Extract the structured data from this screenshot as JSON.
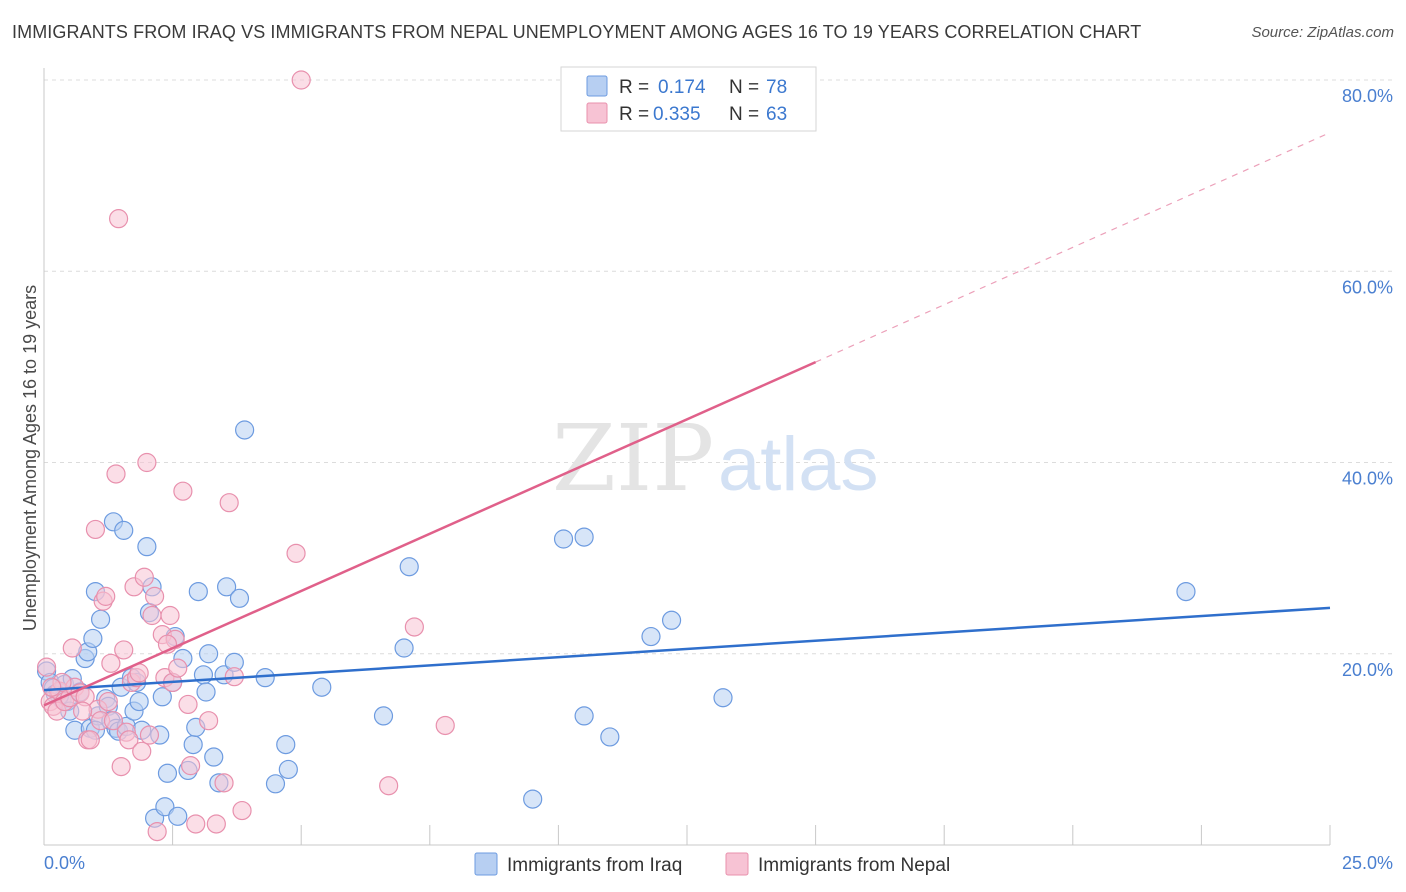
{
  "title": "IMMIGRANTS FROM IRAQ VS IMMIGRANTS FROM NEPAL UNEMPLOYMENT AMONG AGES 16 TO 19 YEARS CORRELATION CHART",
  "source": "Source: ZipAtlas.com",
  "watermark": {
    "zip": "ZIP",
    "atlas": "atlas"
  },
  "colors": {
    "iraq_fill": "#b7cff2",
    "iraq_stroke": "#6d9be0",
    "iraq_line": "#2f6fcc",
    "nepal_fill": "#f7c3d4",
    "nepal_stroke": "#e890ad",
    "nepal_line": "#e0608a",
    "grid": "#dcdcdc",
    "tick_label": "#4a7fd0"
  },
  "legend": {
    "iraq": {
      "r_label": "R =",
      "r_value": "0.174",
      "n_label": "N =",
      "n_value": "78"
    },
    "nepal": {
      "r_label": "R =",
      "r_value": "0.335",
      "n_label": "N =",
      "n_value": "63"
    }
  },
  "bottom_legend": {
    "iraq": "Immigrants from Iraq",
    "nepal": "Immigrants from Nepal"
  },
  "chart_data": {
    "type": "scatter",
    "title": "IMMIGRANTS FROM IRAQ VS IMMIGRANTS FROM NEPAL UNEMPLOYMENT AMONG AGES 16 TO 19 YEARS CORRELATION CHART",
    "xlabel": "",
    "ylabel": "Unemployment Among Ages 16 to 19 years",
    "xlim": [
      0,
      25
    ],
    "ylim": [
      0,
      80
    ],
    "x_tick_labels": [
      "0.0%",
      "25.0%"
    ],
    "y_tick_labels": [
      "20.0%",
      "40.0%",
      "60.0%",
      "80.0%"
    ],
    "y_ticks": [
      20,
      40,
      60,
      80
    ],
    "grid": true,
    "legend_position": "top-center",
    "series": [
      {
        "name": "Immigrants from Iraq",
        "r": 0.174,
        "n": 78,
        "trend": {
          "x": [
            0,
            25
          ],
          "y": [
            16.2,
            24.8
          ],
          "dashed_extension": false
        },
        "points": [
          [
            0.05,
            18.2
          ],
          [
            0.12,
            17.0
          ],
          [
            0.18,
            16.4
          ],
          [
            0.22,
            15.8
          ],
          [
            0.28,
            16.0
          ],
          [
            0.35,
            15.2
          ],
          [
            0.4,
            16.8
          ],
          [
            0.45,
            15.0
          ],
          [
            0.5,
            14.0
          ],
          [
            0.55,
            17.4
          ],
          [
            0.6,
            12.0
          ],
          [
            0.7,
            16.0
          ],
          [
            0.8,
            19.5
          ],
          [
            0.85,
            20.2
          ],
          [
            0.9,
            12.2
          ],
          [
            0.95,
            21.6
          ],
          [
            1.0,
            26.5
          ],
          [
            1.05,
            13.5
          ],
          [
            1.1,
            23.6
          ],
          [
            1.2,
            15.3
          ],
          [
            1.25,
            14.5
          ],
          [
            1.3,
            13.0
          ],
          [
            1.35,
            33.8
          ],
          [
            1.4,
            12.2
          ],
          [
            1.45,
            11.9
          ],
          [
            1.5,
            16.5
          ],
          [
            1.55,
            32.9
          ],
          [
            1.6,
            12.4
          ],
          [
            1.7,
            17.5
          ],
          [
            1.75,
            14.0
          ],
          [
            1.8,
            17.0
          ],
          [
            1.85,
            15.0
          ],
          [
            1.9,
            12.0
          ],
          [
            2.0,
            31.2
          ],
          [
            2.05,
            24.3
          ],
          [
            2.1,
            27.0
          ],
          [
            2.15,
            2.8
          ],
          [
            2.25,
            11.5
          ],
          [
            2.3,
            15.5
          ],
          [
            2.35,
            4.0
          ],
          [
            2.4,
            7.5
          ],
          [
            2.5,
            17.0
          ],
          [
            2.55,
            21.8
          ],
          [
            2.6,
            3.0
          ],
          [
            2.7,
            19.5
          ],
          [
            2.8,
            7.8
          ],
          [
            2.9,
            10.5
          ],
          [
            2.95,
            12.3
          ],
          [
            3.0,
            26.5
          ],
          [
            3.1,
            17.8
          ],
          [
            3.15,
            16.0
          ],
          [
            3.2,
            20.0
          ],
          [
            3.3,
            9.2
          ],
          [
            3.4,
            6.5
          ],
          [
            3.5,
            17.8
          ],
          [
            3.55,
            27.0
          ],
          [
            3.7,
            19.1
          ],
          [
            3.8,
            25.8
          ],
          [
            3.9,
            43.4
          ],
          [
            4.3,
            17.5
          ],
          [
            4.5,
            6.4
          ],
          [
            4.7,
            10.5
          ],
          [
            4.75,
            7.9
          ],
          [
            5.4,
            16.5
          ],
          [
            6.6,
            13.5
          ],
          [
            7.0,
            20.6
          ],
          [
            7.1,
            29.1
          ],
          [
            9.5,
            4.8
          ],
          [
            10.1,
            32.0
          ],
          [
            10.5,
            13.5
          ],
          [
            10.5,
            32.2
          ],
          [
            11.0,
            11.3
          ],
          [
            11.8,
            21.8
          ],
          [
            12.2,
            23.5
          ],
          [
            13.2,
            15.4
          ],
          [
            22.2,
            26.5
          ],
          [
            1.0,
            12.0
          ],
          [
            0.3,
            15.6
          ]
        ]
      },
      {
        "name": "Immigrants from Nepal",
        "r": 0.335,
        "n": 63,
        "trend": {
          "x": [
            0,
            15
          ],
          "y": [
            14.6,
            50.5
          ],
          "dashed_extension_to": [
            25,
            74.5
          ]
        },
        "points": [
          [
            0.05,
            18.6
          ],
          [
            0.12,
            15.0
          ],
          [
            0.18,
            14.5
          ],
          [
            0.25,
            14.0
          ],
          [
            0.3,
            16.1
          ],
          [
            0.4,
            15.0
          ],
          [
            0.5,
            15.4
          ],
          [
            0.55,
            20.6
          ],
          [
            0.6,
            16.5
          ],
          [
            0.7,
            15.9
          ],
          [
            0.8,
            15.5
          ],
          [
            0.85,
            11.0
          ],
          [
            0.9,
            11.0
          ],
          [
            1.0,
            33.0
          ],
          [
            1.05,
            14.2
          ],
          [
            1.1,
            13.0
          ],
          [
            1.15,
            25.5
          ],
          [
            1.2,
            26.0
          ],
          [
            1.3,
            19.0
          ],
          [
            1.35,
            13.0
          ],
          [
            1.4,
            38.8
          ],
          [
            1.45,
            65.5
          ],
          [
            1.5,
            8.2
          ],
          [
            1.55,
            20.4
          ],
          [
            1.6,
            11.8
          ],
          [
            1.65,
            11.0
          ],
          [
            1.7,
            17.0
          ],
          [
            1.75,
            27.0
          ],
          [
            1.8,
            17.5
          ],
          [
            1.85,
            18.0
          ],
          [
            1.9,
            9.8
          ],
          [
            1.95,
            28.0
          ],
          [
            2.0,
            40.0
          ],
          [
            2.05,
            11.5
          ],
          [
            2.1,
            24.0
          ],
          [
            2.15,
            26.0
          ],
          [
            2.2,
            1.4
          ],
          [
            2.3,
            22.0
          ],
          [
            2.35,
            17.5
          ],
          [
            2.45,
            24.0
          ],
          [
            2.5,
            17.0
          ],
          [
            2.55,
            21.5
          ],
          [
            2.6,
            18.5
          ],
          [
            2.7,
            37.0
          ],
          [
            2.8,
            14.7
          ],
          [
            2.85,
            8.3
          ],
          [
            2.95,
            2.2
          ],
          [
            3.2,
            13.0
          ],
          [
            3.35,
            2.2
          ],
          [
            3.5,
            6.5
          ],
          [
            3.6,
            35.8
          ],
          [
            3.7,
            17.6
          ],
          [
            3.85,
            3.6
          ],
          [
            4.9,
            30.5
          ],
          [
            5.0,
            80.0
          ],
          [
            6.7,
            6.2
          ],
          [
            7.2,
            22.8
          ],
          [
            7.8,
            12.5
          ],
          [
            0.35,
            17.0
          ],
          [
            0.75,
            14.0
          ],
          [
            1.25,
            15.0
          ],
          [
            2.4,
            21.0
          ],
          [
            0.15,
            16.5
          ]
        ]
      }
    ]
  }
}
